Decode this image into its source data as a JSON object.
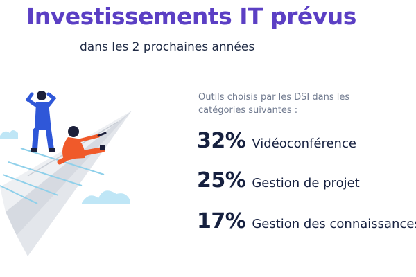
{
  "header": {
    "title": "Investissements IT prévus",
    "subtitle": "dans les 2 prochaines années"
  },
  "intro": "Outils choisis par les DSI dans les catégories suivantes :",
  "stats": [
    {
      "percent": "32%",
      "label": "Vidéoconférence"
    },
    {
      "percent": "25%",
      "label": "Gestion de projet"
    },
    {
      "percent": "17%",
      "label": "Gestion des connaissances"
    }
  ],
  "colors": {
    "title": "#5b3fc4",
    "text": "#16203f",
    "muted": "#707a8f",
    "plane_light": "#eef0f3",
    "plane_shadow": "#d6dae1",
    "plane_line": "#8fd0ea",
    "cloud": "#bfe6f6",
    "person_blue": "#2f57d8",
    "person_orange": "#f05a2a"
  },
  "illustration": {
    "icons": [
      "paper-plane-icon",
      "standing-person-icon",
      "sitting-person-icon",
      "cloud-icon"
    ]
  }
}
